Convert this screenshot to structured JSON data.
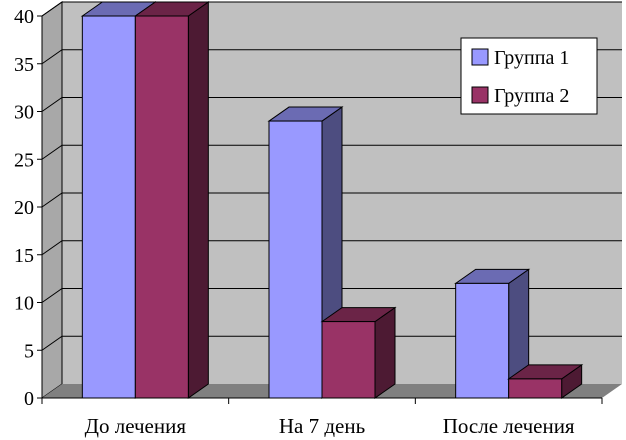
{
  "chart_data": {
    "type": "bar",
    "title": "",
    "xlabel": "",
    "ylabel": "",
    "categories": [
      "До лечения",
      "На 7 день",
      "После лечения"
    ],
    "series": [
      {
        "name": "Группа 1",
        "values": [
          40,
          29,
          12
        ],
        "color": "#9999ff"
      },
      {
        "name": "Группа 2",
        "values": [
          40,
          8,
          2
        ],
        "color": "#993366"
      }
    ],
    "ylim": [
      0,
      40
    ],
    "yticks": [
      "0",
      "5",
      "10",
      "15",
      "20",
      "25",
      "30",
      "35",
      "40"
    ],
    "grid": true,
    "legend_position": "right",
    "three_d": true,
    "plot_background": "#c0c0c0"
  }
}
